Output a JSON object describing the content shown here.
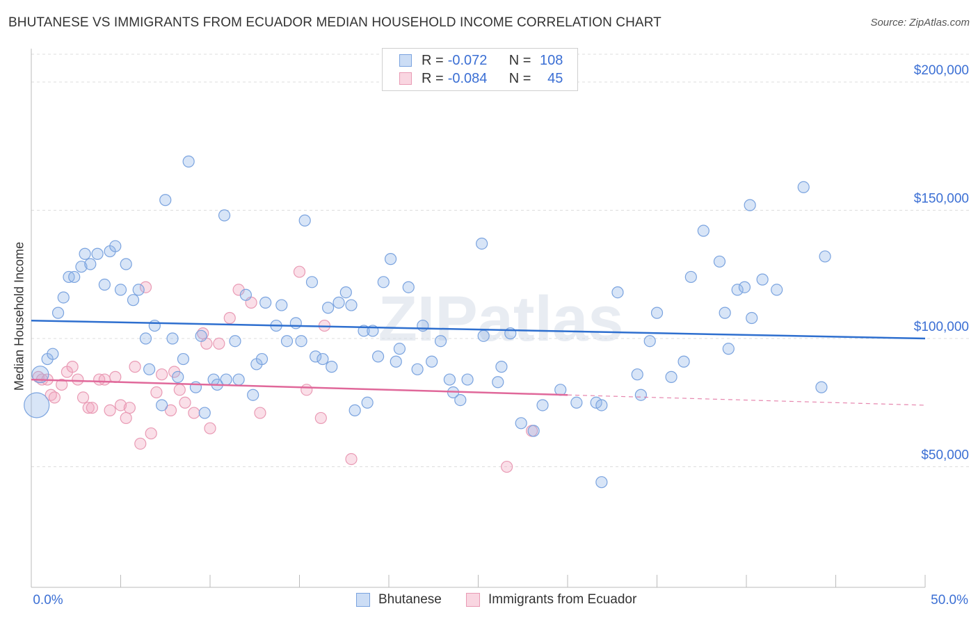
{
  "title": "BHUTANESE VS IMMIGRANTS FROM ECUADOR MEDIAN HOUSEHOLD INCOME CORRELATION CHART",
  "source": "Source: ZipAtlas.com",
  "watermark": "ZIPatlas",
  "legend_top": [
    {
      "r_label": "R =",
      "r_value": "-0.072",
      "n_label": "N =",
      "n_value": "108",
      "color": "#8fb4e8"
    },
    {
      "r_label": "R =",
      "r_value": "-0.084",
      "n_label": "N =",
      "n_value": "45",
      "color": "#f2a4bd"
    }
  ],
  "legend_bottom": [
    {
      "label": "Bhutanese",
      "color": "#8fb4e8"
    },
    {
      "label": "Immigrants from Ecuador",
      "color": "#f2a4bd"
    }
  ],
  "colors": {
    "blue_fill": "rgba(143,180,232,0.35)",
    "blue_stroke": "#7aa3df",
    "blue_line": "#2e6fcf",
    "pink_fill": "rgba(242,164,189,0.35)",
    "pink_stroke": "#e99ab4",
    "pink_line": "#e0689a",
    "tick_label": "#3b6fd4",
    "grid": "#dddddd"
  },
  "chart_data": {
    "type": "scatter",
    "title": "BHUTANESE VS IMMIGRANTS FROM ECUADOR MEDIAN HOUSEHOLD INCOME CORRELATION CHART",
    "xlabel": "",
    "ylabel": "Median Household Income",
    "xlim": [
      0,
      50
    ],
    "ylim": [
      3000,
      213000
    ],
    "x_tick_labels": [
      "0.0%",
      "50.0%"
    ],
    "y_ticks": [
      50000,
      100000,
      150000,
      200000
    ],
    "y_tick_labels": [
      "$50,000",
      "$100,000",
      "$150,000",
      "$200,000"
    ],
    "grid": true,
    "legend_position": "top-center",
    "series": [
      {
        "name": "Bhutanese",
        "trend": {
          "x": [
            0,
            50
          ],
          "y": [
            107000,
            100000
          ]
        },
        "points": [
          [
            0.3,
            74000
          ],
          [
            0.5,
            86000
          ],
          [
            0.9,
            92000
          ],
          [
            1.2,
            94000
          ],
          [
            1.5,
            110000
          ],
          [
            1.8,
            116000
          ],
          [
            2.1,
            124000
          ],
          [
            2.4,
            124000
          ],
          [
            2.8,
            128000
          ],
          [
            3.0,
            133000
          ],
          [
            3.3,
            129000
          ],
          [
            3.7,
            133000
          ],
          [
            4.1,
            121000
          ],
          [
            4.4,
            134000
          ],
          [
            4.7,
            136000
          ],
          [
            5.0,
            119000
          ],
          [
            5.3,
            129000
          ],
          [
            5.7,
            115000
          ],
          [
            6.0,
            119000
          ],
          [
            6.4,
            100000
          ],
          [
            6.6,
            88000
          ],
          [
            6.9,
            105000
          ],
          [
            7.3,
            74000
          ],
          [
            7.5,
            154000
          ],
          [
            7.9,
            100000
          ],
          [
            8.2,
            85000
          ],
          [
            8.5,
            92000
          ],
          [
            8.8,
            169000
          ],
          [
            9.2,
            81000
          ],
          [
            9.5,
            101000
          ],
          [
            9.7,
            71000
          ],
          [
            10.2,
            84000
          ],
          [
            10.4,
            82000
          ],
          [
            10.8,
            148000
          ],
          [
            10.9,
            84000
          ],
          [
            11.4,
            99000
          ],
          [
            11.6,
            84000
          ],
          [
            12.0,
            117000
          ],
          [
            12.4,
            78000
          ],
          [
            12.6,
            90000
          ],
          [
            12.9,
            92000
          ],
          [
            13.1,
            114000
          ],
          [
            13.7,
            105000
          ],
          [
            14.0,
            113000
          ],
          [
            14.3,
            99000
          ],
          [
            14.8,
            106000
          ],
          [
            15.1,
            99000
          ],
          [
            15.3,
            146000
          ],
          [
            15.7,
            122000
          ],
          [
            15.9,
            93000
          ],
          [
            16.3,
            92000
          ],
          [
            16.6,
            112000
          ],
          [
            16.8,
            89000
          ],
          [
            17.2,
            114000
          ],
          [
            17.6,
            118000
          ],
          [
            17.9,
            113000
          ],
          [
            18.1,
            72000
          ],
          [
            18.6,
            103000
          ],
          [
            18.8,
            75000
          ],
          [
            19.1,
            103000
          ],
          [
            19.4,
            93000
          ],
          [
            19.7,
            122000
          ],
          [
            20.1,
            131000
          ],
          [
            20.4,
            91000
          ],
          [
            20.6,
            96000
          ],
          [
            21.1,
            120000
          ],
          [
            21.6,
            88000
          ],
          [
            21.9,
            105000
          ],
          [
            22.4,
            91000
          ],
          [
            22.9,
            99000
          ],
          [
            23.4,
            84000
          ],
          [
            23.6,
            79000
          ],
          [
            24.0,
            76000
          ],
          [
            24.4,
            84000
          ],
          [
            25.2,
            137000
          ],
          [
            25.3,
            101000
          ],
          [
            26.1,
            83000
          ],
          [
            26.3,
            89000
          ],
          [
            26.8,
            102000
          ],
          [
            27.4,
            67000
          ],
          [
            28.1,
            64000
          ],
          [
            28.6,
            74000
          ],
          [
            29.6,
            80000
          ],
          [
            30.5,
            75000
          ],
          [
            31.6,
            75000
          ],
          [
            31.9,
            74000
          ],
          [
            31.9,
            44000
          ],
          [
            32.8,
            118000
          ],
          [
            33.9,
            86000
          ],
          [
            34.1,
            78000
          ],
          [
            34.6,
            99000
          ],
          [
            35.0,
            110000
          ],
          [
            35.8,
            85000
          ],
          [
            36.5,
            91000
          ],
          [
            36.9,
            124000
          ],
          [
            37.6,
            142000
          ],
          [
            38.5,
            130000
          ],
          [
            38.8,
            110000
          ],
          [
            39.0,
            96000
          ],
          [
            39.5,
            119000
          ],
          [
            39.9,
            120000
          ],
          [
            40.2,
            152000
          ],
          [
            40.3,
            108000
          ],
          [
            40.9,
            123000
          ],
          [
            41.7,
            119000
          ],
          [
            43.2,
            159000
          ],
          [
            44.2,
            81000
          ],
          [
            44.4,
            132000
          ]
        ]
      },
      {
        "name": "Immigrants from Ecuador",
        "trend": {
          "x": [
            0,
            30
          ],
          "y": [
            84000,
            78000
          ]
        },
        "trend_dashed": {
          "x": [
            30,
            50
          ],
          "y": [
            78000,
            74000
          ]
        },
        "points": [
          [
            0.4,
            85000
          ],
          [
            0.6,
            84000
          ],
          [
            0.9,
            84000
          ],
          [
            1.1,
            78000
          ],
          [
            1.3,
            77000
          ],
          [
            1.7,
            82000
          ],
          [
            2.0,
            87000
          ],
          [
            2.3,
            89000
          ],
          [
            2.6,
            84000
          ],
          [
            2.9,
            77000
          ],
          [
            3.2,
            73000
          ],
          [
            3.4,
            73000
          ],
          [
            3.8,
            84000
          ],
          [
            4.1,
            84000
          ],
          [
            4.4,
            72000
          ],
          [
            4.7,
            85000
          ],
          [
            5.0,
            74000
          ],
          [
            5.3,
            69000
          ],
          [
            5.5,
            73000
          ],
          [
            5.8,
            89000
          ],
          [
            6.1,
            59000
          ],
          [
            6.4,
            120000
          ],
          [
            6.7,
            63000
          ],
          [
            7.0,
            79000
          ],
          [
            7.3,
            86000
          ],
          [
            7.8,
            72000
          ],
          [
            8.0,
            87000
          ],
          [
            8.3,
            80000
          ],
          [
            8.6,
            75000
          ],
          [
            9.1,
            71000
          ],
          [
            9.6,
            102000
          ],
          [
            9.8,
            98000
          ],
          [
            10.0,
            65000
          ],
          [
            10.5,
            98000
          ],
          [
            11.1,
            108000
          ],
          [
            11.6,
            119000
          ],
          [
            12.3,
            114000
          ],
          [
            12.8,
            71000
          ],
          [
            15.0,
            126000
          ],
          [
            15.4,
            80000
          ],
          [
            16.2,
            69000
          ],
          [
            16.4,
            105000
          ],
          [
            17.9,
            53000
          ],
          [
            26.6,
            50000
          ],
          [
            28.0,
            64000
          ]
        ]
      }
    ]
  }
}
